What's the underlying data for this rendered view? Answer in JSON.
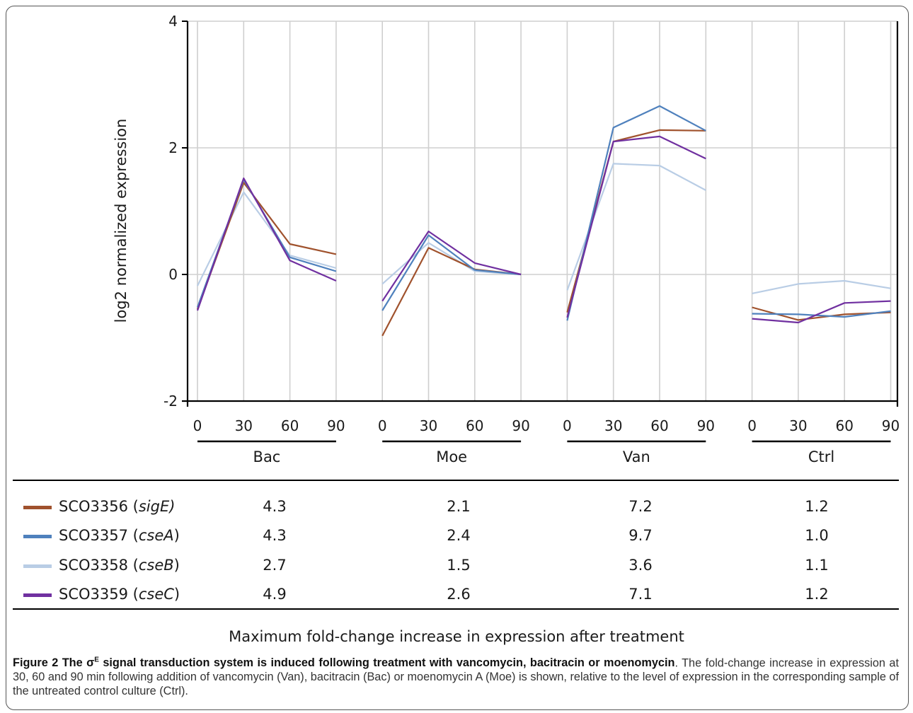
{
  "chart_data": {
    "type": "line",
    "ylabel": "log2 normalized expression",
    "xlabel": "",
    "ylim": [
      -2,
      4
    ],
    "yticks": [
      "-2",
      "0",
      "2",
      "4"
    ],
    "grid": true,
    "groups": [
      {
        "name": "Bac",
        "x": [
          "0",
          "30",
          "60",
          "90"
        ]
      },
      {
        "name": "Moe",
        "x": [
          "0",
          "30",
          "60",
          "90"
        ]
      },
      {
        "name": "Van",
        "x": [
          "0",
          "30",
          "60",
          "90"
        ]
      },
      {
        "name": "Ctrl",
        "x": [
          "0",
          "30",
          "60",
          "90"
        ]
      }
    ],
    "series": [
      {
        "name": "SCO3356 (sigE)",
        "color": "#a0522d",
        "values": [
          [
            -0.55,
            1.45,
            0.48,
            0.32
          ],
          [
            -0.97,
            0.42,
            0.08,
            0.0
          ],
          [
            -0.6,
            2.1,
            2.28,
            2.27
          ],
          [
            -0.52,
            -0.72,
            -0.63,
            -0.6
          ]
        ]
      },
      {
        "name": "SCO3357 (cseA)",
        "color": "#4f81bd",
        "values": [
          [
            -0.52,
            1.5,
            0.27,
            0.05
          ],
          [
            -0.57,
            0.62,
            0.07,
            0.0
          ],
          [
            -0.73,
            2.32,
            2.66,
            2.27
          ],
          [
            -0.62,
            -0.63,
            -0.67,
            -0.58
          ]
        ]
      },
      {
        "name": "SCO3358 (cseB)",
        "color": "#b9cde5",
        "values": [
          [
            -0.18,
            1.3,
            0.3,
            0.1
          ],
          [
            -0.15,
            0.5,
            0.05,
            0.0
          ],
          [
            -0.25,
            1.75,
            1.72,
            1.33
          ],
          [
            -0.3,
            -0.15,
            -0.1,
            -0.22
          ]
        ]
      },
      {
        "name": "SCO3359 (cseC)",
        "color": "#7030a0",
        "values": [
          [
            -0.57,
            1.52,
            0.22,
            -0.1
          ],
          [
            -0.42,
            0.68,
            0.18,
            0.0
          ],
          [
            -0.68,
            2.1,
            2.18,
            1.83
          ],
          [
            -0.7,
            -0.76,
            -0.45,
            -0.42
          ]
        ]
      }
    ]
  },
  "table": {
    "rows": [
      {
        "gene": "SCO3356 (",
        "gene_italic": "sigE)",
        "gene_tail": "",
        "color": "#a0522d",
        "values": [
          "4.3",
          "2.1",
          "7.2",
          "1.2"
        ]
      },
      {
        "gene": "SCO3357 (",
        "gene_italic": "cseA",
        "gene_tail": ")",
        "color": "#4f81bd",
        "values": [
          "4.3",
          "2.4",
          "9.7",
          "1.0"
        ]
      },
      {
        "gene": "SCO3358 (",
        "gene_italic": "cseB",
        "gene_tail": ")",
        "color": "#b9cde5",
        "values": [
          "2.7",
          "1.5",
          "3.6",
          "1.1"
        ]
      },
      {
        "gene": "SCO3359 (",
        "gene_italic": "cseC",
        "gene_tail": ")",
        "color": "#7030a0",
        "values": [
          "4.9",
          "2.6",
          "7.1",
          "1.2"
        ]
      }
    ],
    "caption": "Maximum fold-change increase in expression after treatment"
  },
  "figure_caption": {
    "label_prefix": "Figure 2 The σ",
    "label_sup": "E",
    "label_suffix": " signal transduction system is induced following treatment with vancomycin, bacitracin or moenomycin",
    "text": ". The fold-change increase in expression at 30, 60 and 90 min following addition of vancomycin (Van), bacitracin (Bac) or moenomycin A (Moe) is shown, relative to the level of expression in the corresponding sample of the untreated control culture (Ctrl)."
  }
}
